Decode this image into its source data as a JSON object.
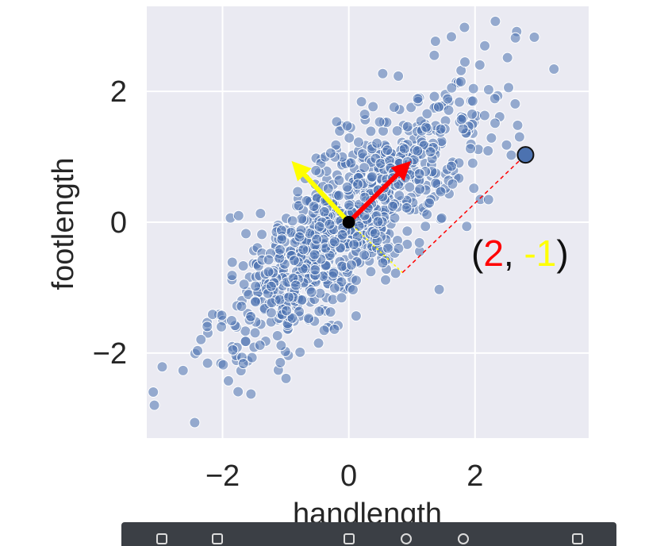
{
  "chart_data": {
    "type": "scatter",
    "title": "",
    "xlabel": "handlength",
    "ylabel": "footlength",
    "xlim": [
      -3.2,
      3.8
    ],
    "ylim": [
      -3.3,
      3.3
    ],
    "xticks": [
      -2,
      0,
      2
    ],
    "yticks": [
      -2,
      0,
      2
    ],
    "xtick_labels": [
      "−2",
      "0",
      "2"
    ],
    "ytick_labels": [
      "−2",
      "0",
      "2"
    ],
    "grid": true,
    "background": "#eaeaf2",
    "point_color": "#4c72b0",
    "origin": [
      0,
      0
    ],
    "vectors": [
      {
        "name": "first-component-arrow",
        "to": [
          1.0,
          0.95
        ],
        "color": "#ff0000"
      },
      {
        "name": "second-component-arrow",
        "to": [
          -0.92,
          0.95
        ],
        "color": "#ffff00"
      }
    ],
    "highlight_point": [
      2.8,
      1.03
    ],
    "projection_feet": [
      0.85,
      -0.77
    ],
    "coord_label": {
      "open": "(",
      "first": "2",
      "sep": ", ",
      "second": "-1",
      "close": ")"
    },
    "coord_colors": {
      "paren": "#111111",
      "first": "#ff0000",
      "second": "#ffff00"
    }
  }
}
